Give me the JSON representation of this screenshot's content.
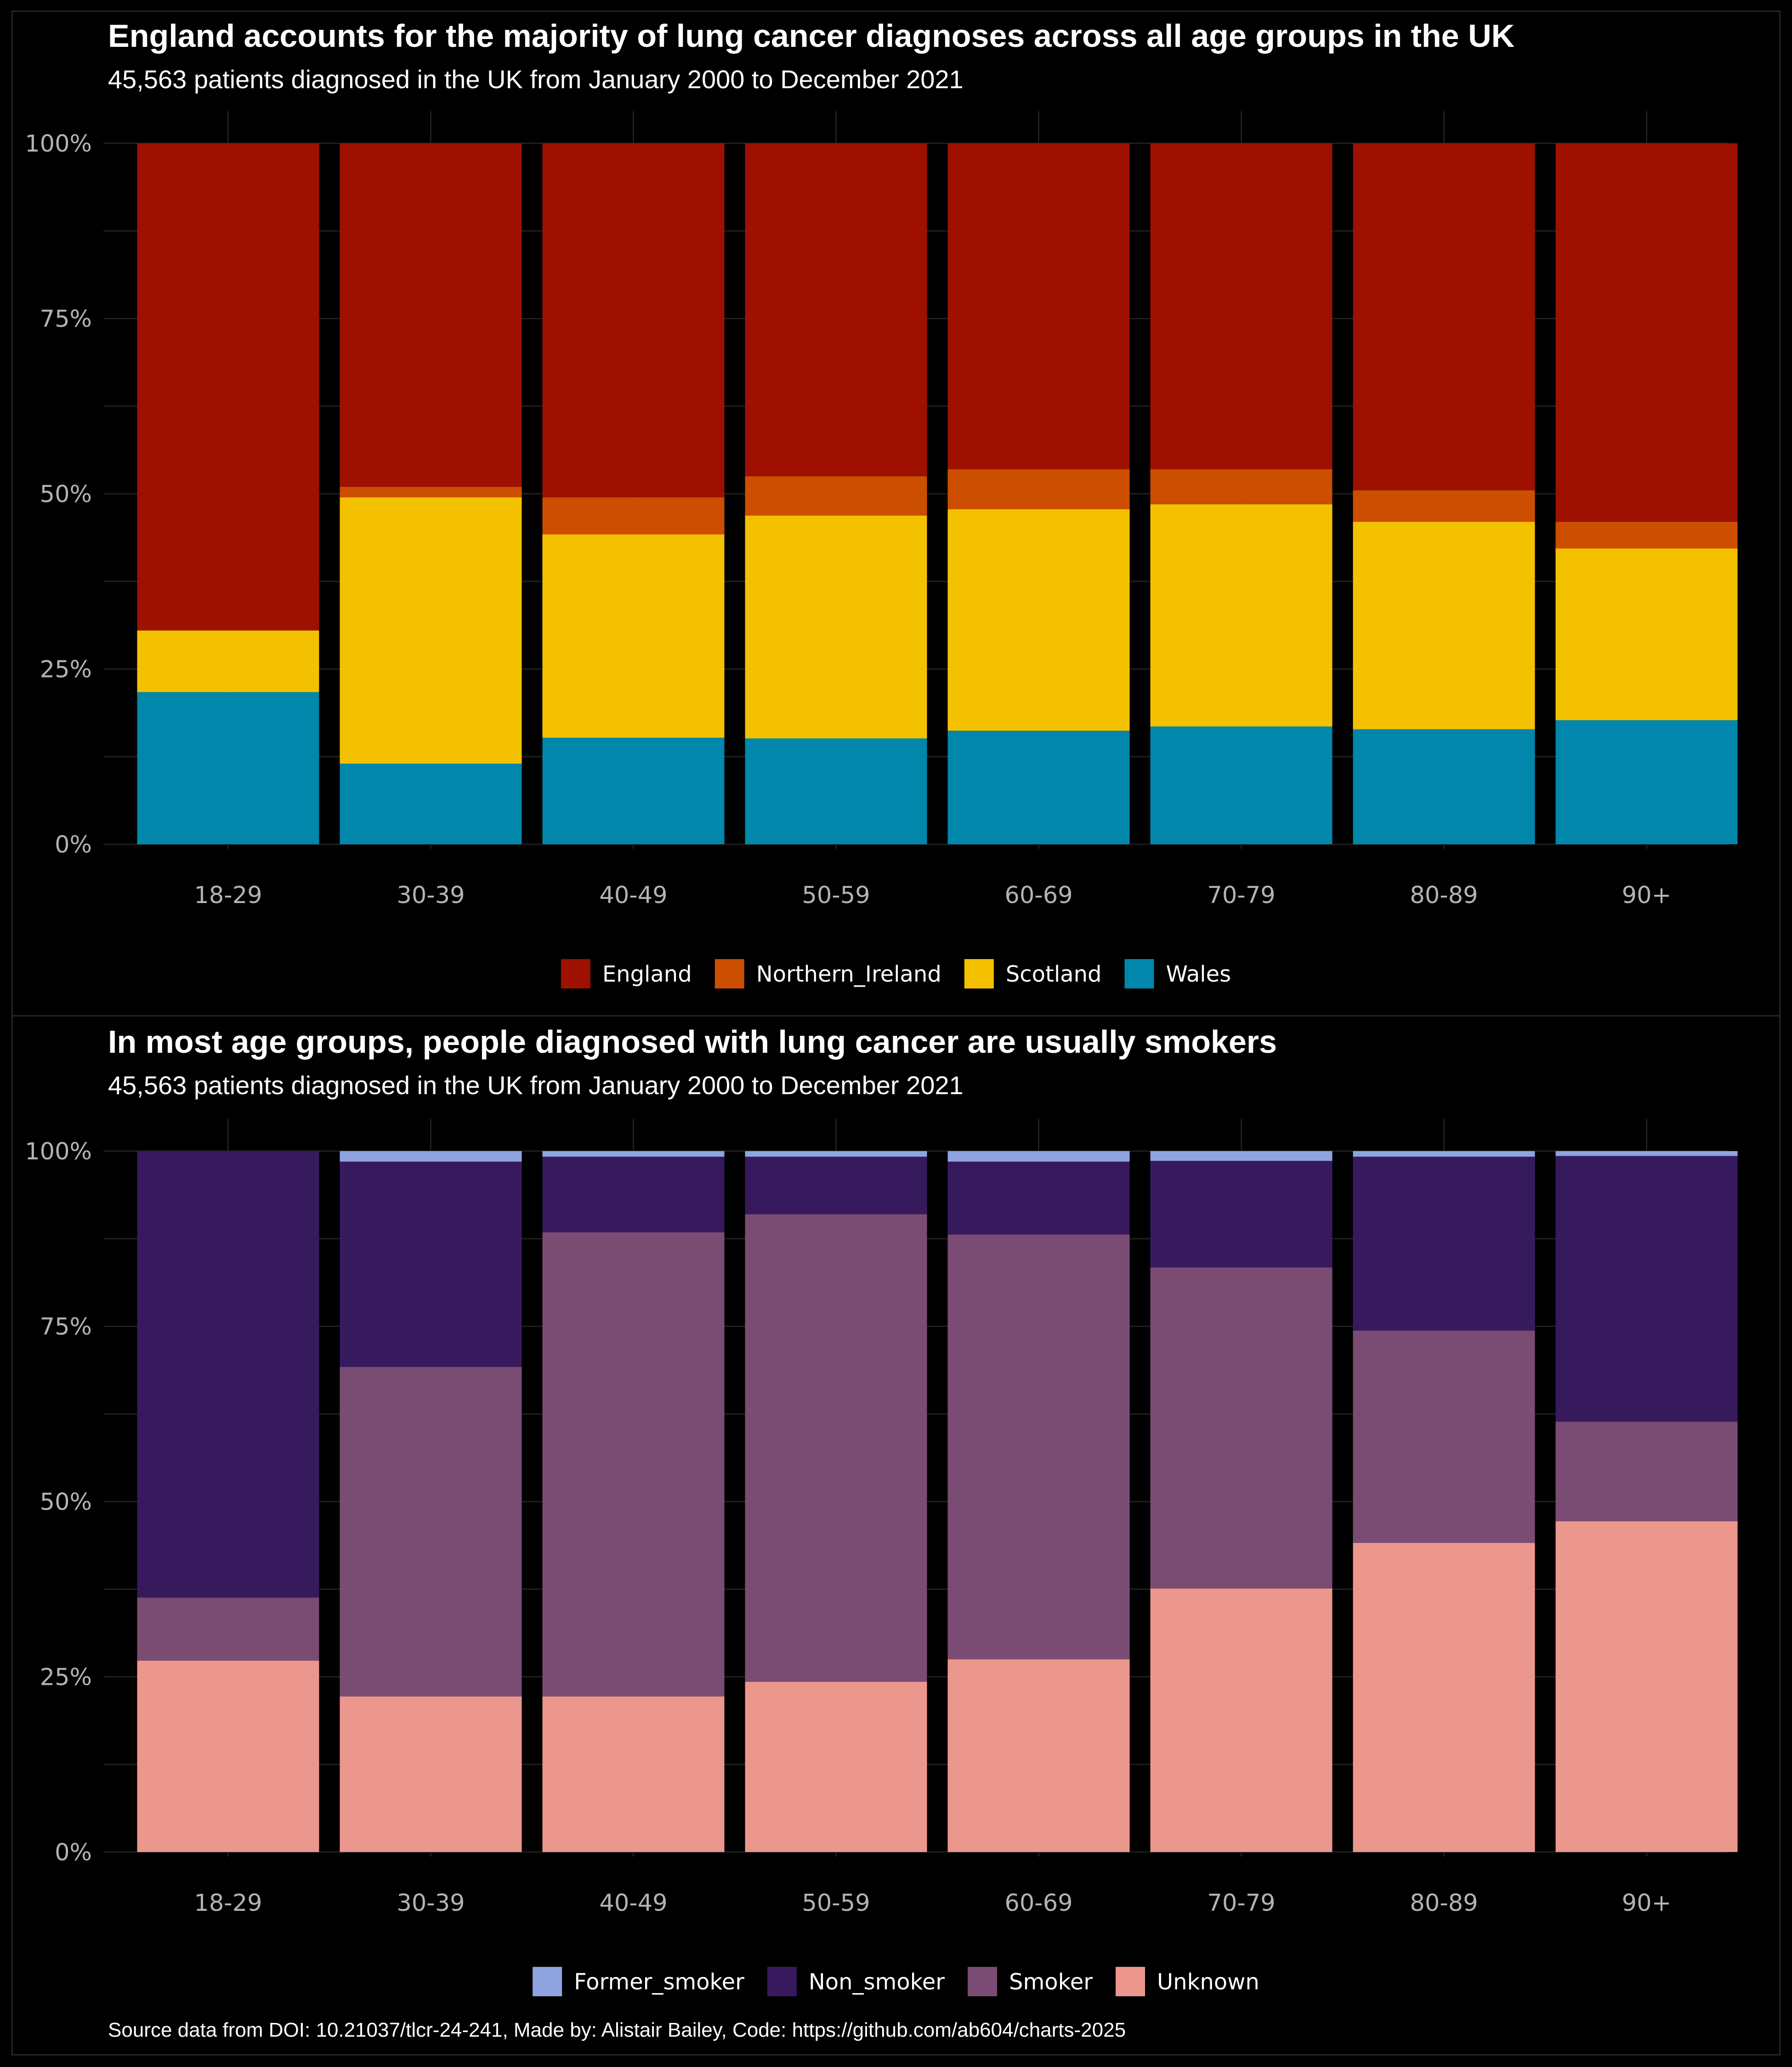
{
  "panels": [
    {
      "title": "England accounts for the majority of lung cancer diagnoses across all age groups in the UK",
      "subtitle": "45,563 patients diagnosed in the UK from January 2000 to December 2021"
    },
    {
      "title": "In most age groups, people diagnosed with lung cancer are usually smokers",
      "subtitle": "45,563 patients diagnosed in the UK from January 2000 to December 2021"
    }
  ],
  "caption": "Source data from DOI: 10.21037/tlcr-24-241, Made by: Alistair Bailey, Code: https://github.com/ab604/charts-2025",
  "chart_data": [
    {
      "type": "bar",
      "stacked": true,
      "normalized": true,
      "title": "England accounts for the majority of lung cancer diagnoses across all age groups in the UK",
      "subtitle": "45,563 patients diagnosed in the UK from January 2000 to December 2021",
      "categories": [
        "18-29",
        "30-39",
        "40-49",
        "50-59",
        "60-69",
        "70-79",
        "80-89",
        "90+"
      ],
      "y_ticks": [
        "0%",
        "25%",
        "50%",
        "75%",
        "100%"
      ],
      "ylim": [
        0,
        100
      ],
      "grid": true,
      "legend_position": "bottom",
      "stack_order_bottom_to_top": [
        "Wales",
        "Scotland",
        "Northern_Ireland",
        "England"
      ],
      "series": [
        {
          "name": "England",
          "color": "#9E1000",
          "values": [
            69.5,
            49.0,
            50.5,
            47.5,
            46.5,
            46.5,
            49.5,
            54.0
          ]
        },
        {
          "name": "Northern_Ireland",
          "color": "#CC4E00",
          "values": [
            0.0,
            1.5,
            5.3,
            5.6,
            5.7,
            5.0,
            4.5,
            3.8
          ]
        },
        {
          "name": "Scotland",
          "color": "#F4C100",
          "values": [
            8.8,
            38.0,
            29.0,
            31.8,
            31.6,
            31.7,
            29.6,
            24.5
          ]
        },
        {
          "name": "Wales",
          "color": "#0087AB",
          "values": [
            21.7,
            11.5,
            15.2,
            15.1,
            16.2,
            16.8,
            16.4,
            17.7
          ]
        }
      ]
    },
    {
      "type": "bar",
      "stacked": true,
      "normalized": true,
      "title": "In most age groups, people diagnosed with lung cancer are usually smokers",
      "subtitle": "45,563 patients diagnosed in the UK from January 2000 to December 2021",
      "categories": [
        "18-29",
        "30-39",
        "40-49",
        "50-59",
        "60-69",
        "70-79",
        "80-89",
        "90+"
      ],
      "y_ticks": [
        "0%",
        "25%",
        "50%",
        "75%",
        "100%"
      ],
      "ylim": [
        0,
        100
      ],
      "grid": true,
      "legend_position": "bottom",
      "stack_order_bottom_to_top": [
        "Unknown",
        "Smoker",
        "Non_smoker",
        "Former_smoker"
      ],
      "series": [
        {
          "name": "Former_smoker",
          "color": "#8EA4E0",
          "values": [
            0.0,
            1.5,
            0.8,
            0.8,
            1.5,
            1.4,
            0.8,
            0.7
          ]
        },
        {
          "name": "Non_smoker",
          "color": "#371A5E",
          "values": [
            63.7,
            29.3,
            10.8,
            8.2,
            10.4,
            15.2,
            24.8,
            37.9
          ]
        },
        {
          "name": "Smoker",
          "color": "#7A4C73",
          "values": [
            9.0,
            47.0,
            66.2,
            66.7,
            60.6,
            45.8,
            30.3,
            14.2
          ]
        },
        {
          "name": "Unknown",
          "color": "#EC978D",
          "values": [
            27.3,
            22.2,
            22.2,
            24.3,
            27.5,
            37.6,
            44.1,
            47.2
          ]
        }
      ]
    }
  ]
}
